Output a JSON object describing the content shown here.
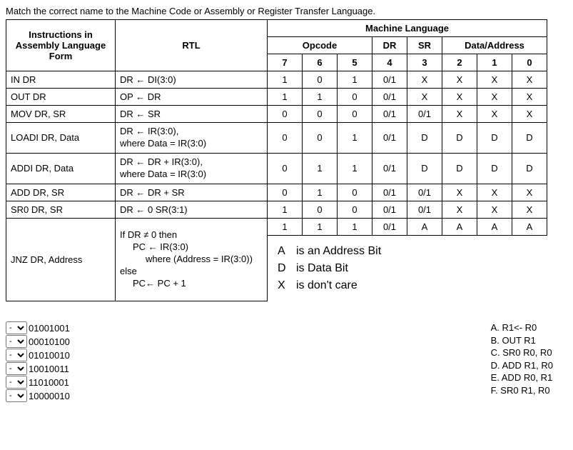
{
  "prompt": "Match the correct name to the Machine Code or Assembly or Register Transfer Language.",
  "headers": {
    "instr": "Instructions in Assembly Language Form",
    "rtl": "RTL",
    "ml": "Machine Language",
    "opcode": "Opcode",
    "dr": "DR",
    "sr": "SR",
    "da": "Data/Address",
    "b7": "7",
    "b6": "6",
    "b5": "5",
    "b4": "4",
    "b3": "3",
    "b2": "2",
    "b1": "1",
    "b0": "0"
  },
  "rows": [
    {
      "instr": "IN  DR",
      "rtl": "DR ← DI(3:0)",
      "bits": [
        "1",
        "0",
        "1",
        "0/1",
        "X",
        "X",
        "X",
        "X"
      ]
    },
    {
      "instr": "OUT  DR",
      "rtl": "OP ← DR",
      "bits": [
        "1",
        "1",
        "0",
        "0/1",
        "X",
        "X",
        "X",
        "X"
      ]
    },
    {
      "instr": "MOV DR, SR",
      "rtl": "DR ← SR",
      "bits": [
        "0",
        "0",
        "0",
        "0/1",
        "0/1",
        "X",
        "X",
        "X"
      ]
    },
    {
      "instr": "LOADI DR, Data",
      "rtl": "DR ← IR(3:0),\nwhere Data = IR(3:0)",
      "bits": [
        "0",
        "0",
        "1",
        "0/1",
        "D",
        "D",
        "D",
        "D"
      ]
    },
    {
      "instr": "ADDI DR, Data",
      "rtl": "DR ← DR + IR(3:0),\nwhere Data = IR(3:0)",
      "bits": [
        "0",
        "1",
        "1",
        "0/1",
        "D",
        "D",
        "D",
        "D"
      ]
    },
    {
      "instr": "ADD DR, SR",
      "rtl": "DR ← DR + SR",
      "bits": [
        "0",
        "1",
        "0",
        "0/1",
        "0/1",
        "X",
        "X",
        "X"
      ]
    },
    {
      "instr": "SR0 DR, SR",
      "rtl": "DR ← 0 SR(3:1)",
      "bits": [
        "1",
        "0",
        "0",
        "0/1",
        "0/1",
        "X",
        "X",
        "X"
      ]
    },
    {
      "instr": "JNZ DR, Address",
      "rtl_multi": {
        "l1": "If DR ≠ 0 then",
        "l2": "PC ← IR(3:0)",
        "l3": "where (Address = IR(3:0))",
        "l4": "else",
        "l5": "PC← PC + 1"
      },
      "bits": [
        "1",
        "1",
        "1",
        "0/1",
        "A",
        "A",
        "A",
        "A"
      ]
    }
  ],
  "legend": {
    "a": "A",
    "a_txt": "is an Address Bit",
    "d": "D",
    "d_txt": "is Data Bit",
    "x": "X",
    "x_txt": "is don't care"
  },
  "matches": [
    "01001001",
    "00010100",
    "01010010",
    "10010011",
    "11010001",
    "10000010"
  ],
  "selectPlaceholder": "-",
  "answers": [
    "A. R1<- R0",
    "B. OUT R1",
    "C. SR0 R0, R0",
    "D. ADD R1, R0",
    "E. ADD R0, R1",
    "F. SR0 R1, R0"
  ]
}
